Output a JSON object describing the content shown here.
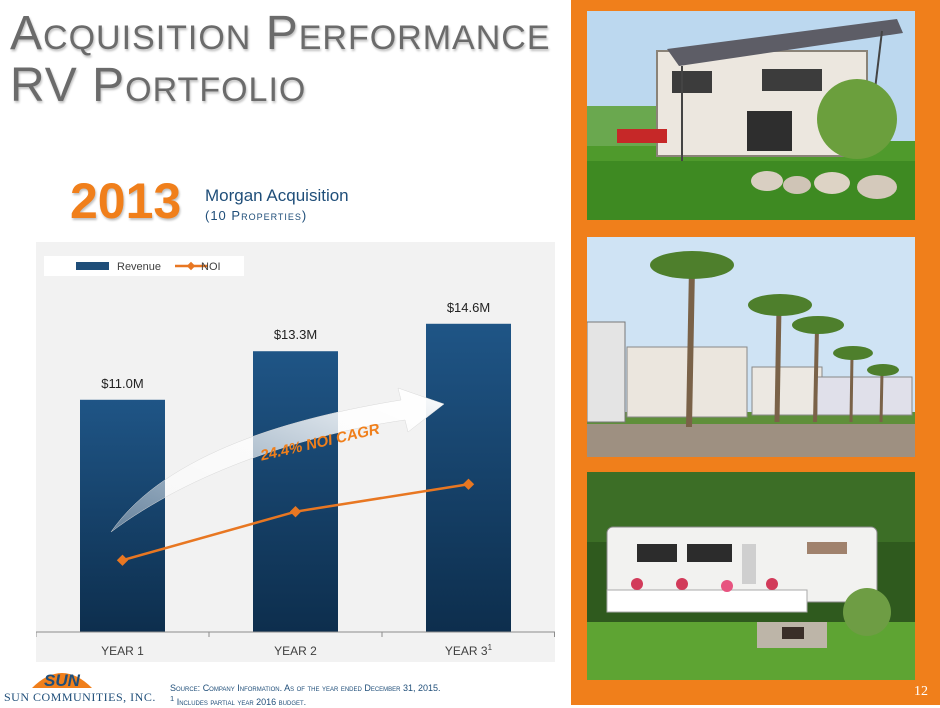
{
  "header": {
    "title_line1": "Acquisition Performance",
    "title_line2": "RV Portfolio"
  },
  "acquisition": {
    "year": "2013",
    "name": "Morgan Acquisition",
    "properties": "(10 Properties)"
  },
  "chart_data": {
    "type": "bar",
    "categories": [
      "YEAR 1",
      "YEAR 2",
      "YEAR 3"
    ],
    "category_superscripts": [
      "",
      "",
      "1"
    ],
    "series": [
      {
        "name": "Revenue",
        "type": "bar",
        "values": [
          11.0,
          13.3,
          14.6
        ],
        "color": "#1f4e79"
      },
      {
        "name": "NOI",
        "type": "line",
        "values": [
          3.4,
          5.7,
          7.0
        ],
        "color": "#e87722"
      }
    ],
    "data_labels": [
      "$11.0M",
      "$13.3M",
      "$14.6M"
    ],
    "annotation": "24.4% NOI CAGR",
    "ylim": [
      0,
      18
    ],
    "legend": "top-left",
    "grid": false
  },
  "footer": {
    "source_label": "Source:",
    "source_text": "Company Information. As of the year ended December 31, 2015.",
    "note_marker": "1",
    "note_text": "Includes partial year 2016 budget.",
    "page_number": "12"
  },
  "logo": {
    "wordmark": "SUN",
    "company": "SUN COMMUNITIES, INC."
  },
  "photos": [
    {
      "name": "rv-site-with-awning-photo"
    },
    {
      "name": "palm-trees-rv-park-photo"
    },
    {
      "name": "trailer-with-garden-photo"
    }
  ],
  "colors": {
    "accent_orange": "#f07f1b",
    "navy": "#1f4e79",
    "title_gray": "#6b6b6b"
  }
}
